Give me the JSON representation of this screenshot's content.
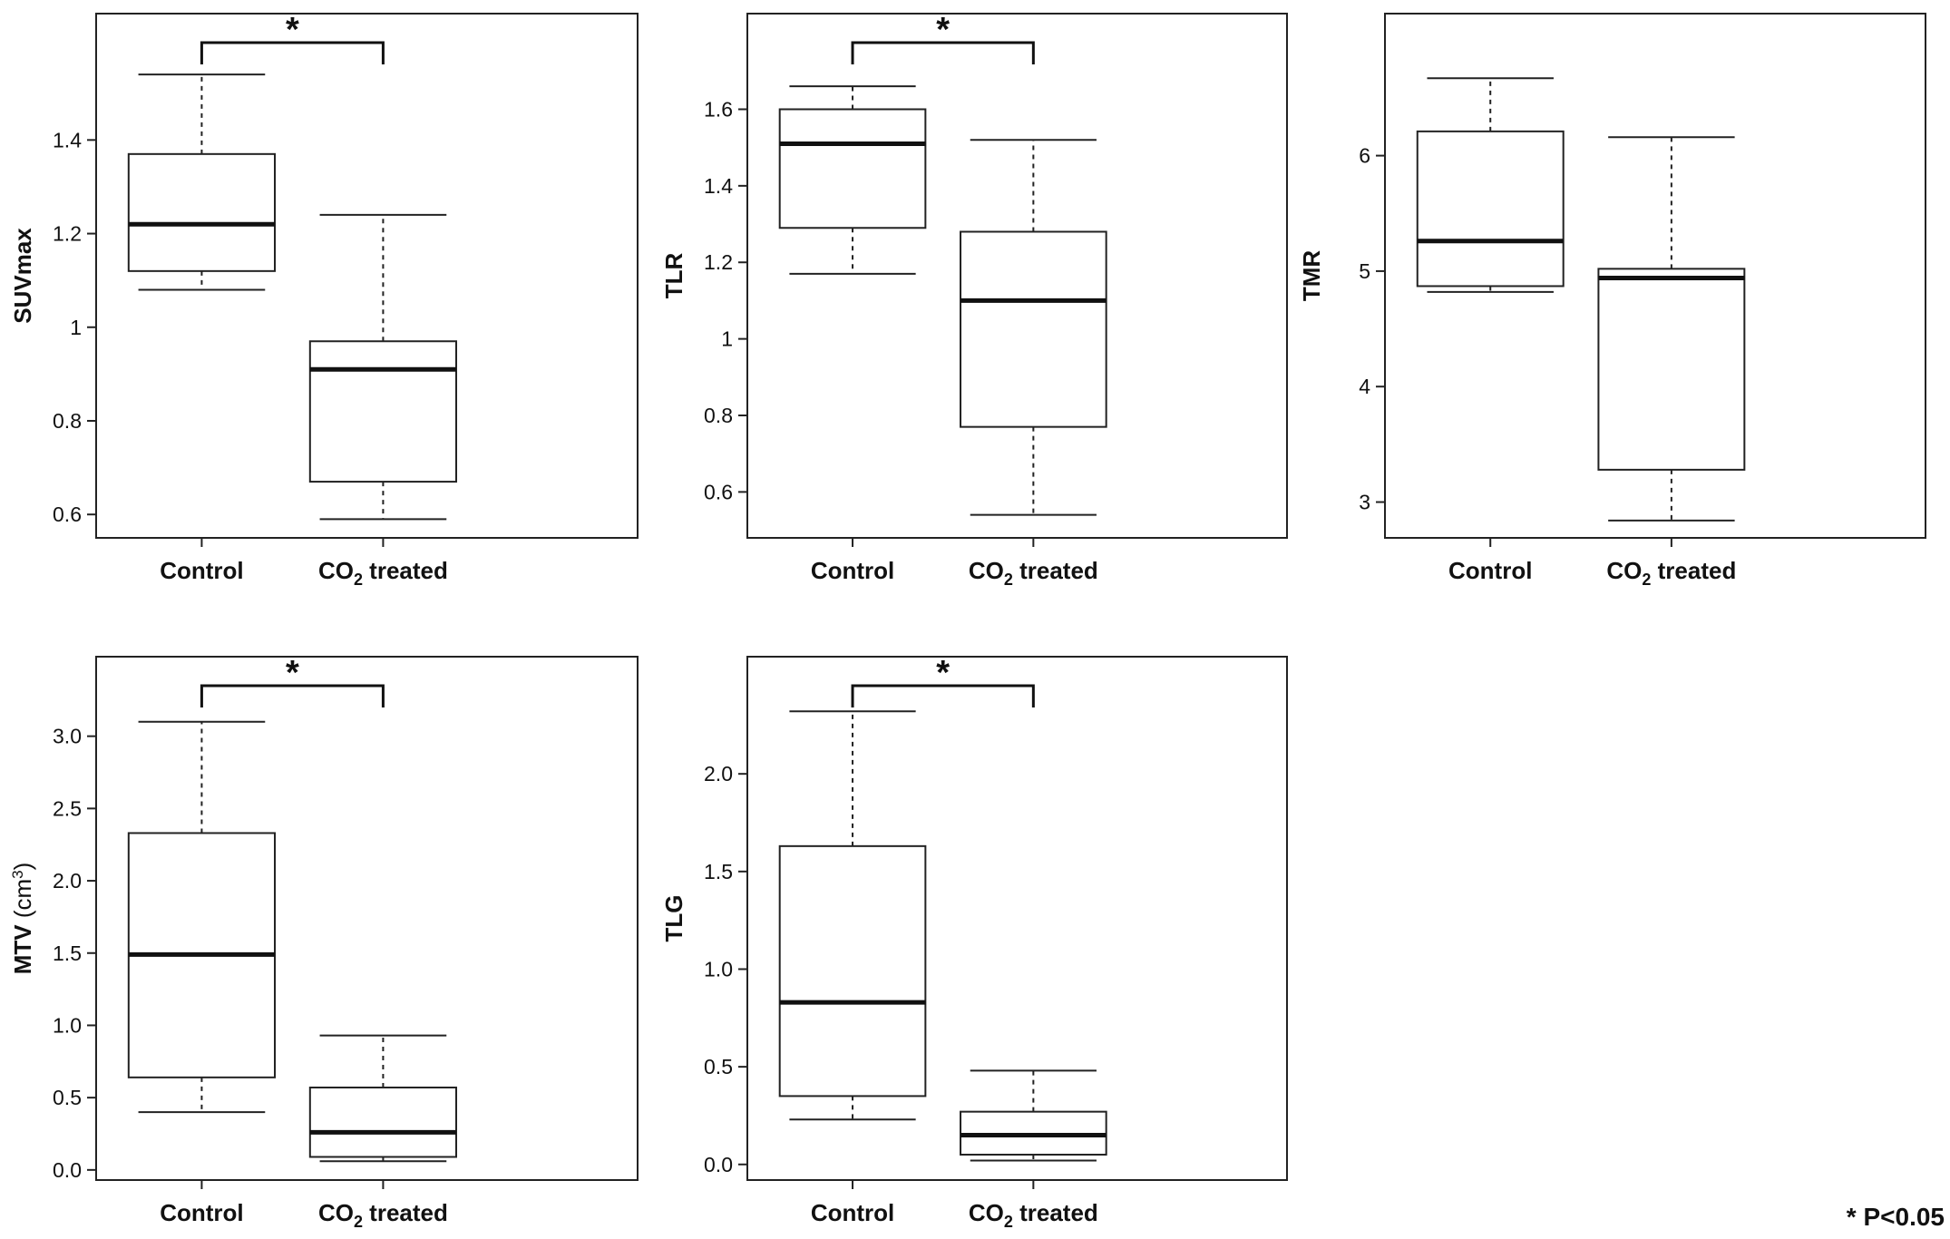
{
  "footnote": "* P<0.05",
  "colors": {
    "line": "#222222",
    "background": "#ffffff"
  },
  "chart_data": [
    {
      "type": "boxplot",
      "ylabel": "SUVmax",
      "categories": [
        "Control",
        "CO₂ treated"
      ],
      "ylim": [
        0.55,
        1.67
      ],
      "yticks": [
        0.6,
        0.8,
        1.0,
        1.2,
        1.4
      ],
      "boxes": [
        {
          "min": 1.08,
          "q1": 1.12,
          "median": 1.22,
          "q3": 1.37,
          "max": 1.54
        },
        {
          "min": 0.59,
          "q1": 0.67,
          "median": 0.91,
          "q3": 0.97,
          "max": 1.24
        }
      ],
      "significance": "*"
    },
    {
      "type": "boxplot",
      "ylabel": "TLR",
      "categories": [
        "Control",
        "CO₂ treated"
      ],
      "ylim": [
        0.48,
        1.85
      ],
      "yticks": [
        0.6,
        0.8,
        1.0,
        1.2,
        1.4,
        1.6
      ],
      "boxes": [
        {
          "min": 1.17,
          "q1": 1.29,
          "median": 1.51,
          "q3": 1.6,
          "max": 1.66
        },
        {
          "min": 0.54,
          "q1": 0.77,
          "median": 1.1,
          "q3": 1.28,
          "max": 1.52
        }
      ],
      "significance": "*"
    },
    {
      "type": "boxplot",
      "ylabel": "TMR",
      "categories": [
        "Control",
        "CO₂ treated"
      ],
      "ylim": [
        2.69,
        7.23
      ],
      "yticks": [
        3,
        4,
        5,
        6
      ],
      "boxes": [
        {
          "min": 4.82,
          "q1": 4.87,
          "median": 5.26,
          "q3": 6.21,
          "max": 6.67
        },
        {
          "min": 2.84,
          "q1": 3.28,
          "median": 4.94,
          "q3": 5.02,
          "max": 6.16
        }
      ],
      "significance": ""
    },
    {
      "type": "boxplot",
      "ylabel": "MTV",
      "ylabel_unit": "(cm",
      "ylabel_sup": "3",
      "ylabel_close": ")",
      "categories": [
        "Control",
        "CO₂ treated"
      ],
      "ylim": [
        -0.07,
        3.55
      ],
      "yticks": [
        0.0,
        0.5,
        1.0,
        1.5,
        2.0,
        2.5,
        3.0
      ],
      "tick_labels": [
        "0.0",
        "0.5",
        "1.0",
        "1.5",
        "2.0",
        "2.5",
        "3.0"
      ],
      "boxes": [
        {
          "min": 0.4,
          "q1": 0.64,
          "median": 1.49,
          "q3": 2.33,
          "max": 3.1
        },
        {
          "min": 0.06,
          "q1": 0.09,
          "median": 0.26,
          "q3": 0.57,
          "max": 0.93
        }
      ],
      "significance": "*"
    },
    {
      "type": "boxplot",
      "ylabel": "TLG",
      "categories": [
        "Control",
        "CO₂ treated"
      ],
      "ylim": [
        -0.08,
        2.6
      ],
      "yticks": [
        0.0,
        0.5,
        1.0,
        1.5,
        2.0
      ],
      "tick_labels": [
        "0.0",
        "0.5",
        "1.0",
        "1.5",
        "2.0"
      ],
      "boxes": [
        {
          "min": 0.23,
          "q1": 0.35,
          "median": 0.83,
          "q3": 1.63,
          "max": 2.32
        },
        {
          "min": 0.02,
          "q1": 0.05,
          "median": 0.15,
          "q3": 0.27,
          "max": 0.48
        }
      ],
      "significance": "*"
    }
  ]
}
